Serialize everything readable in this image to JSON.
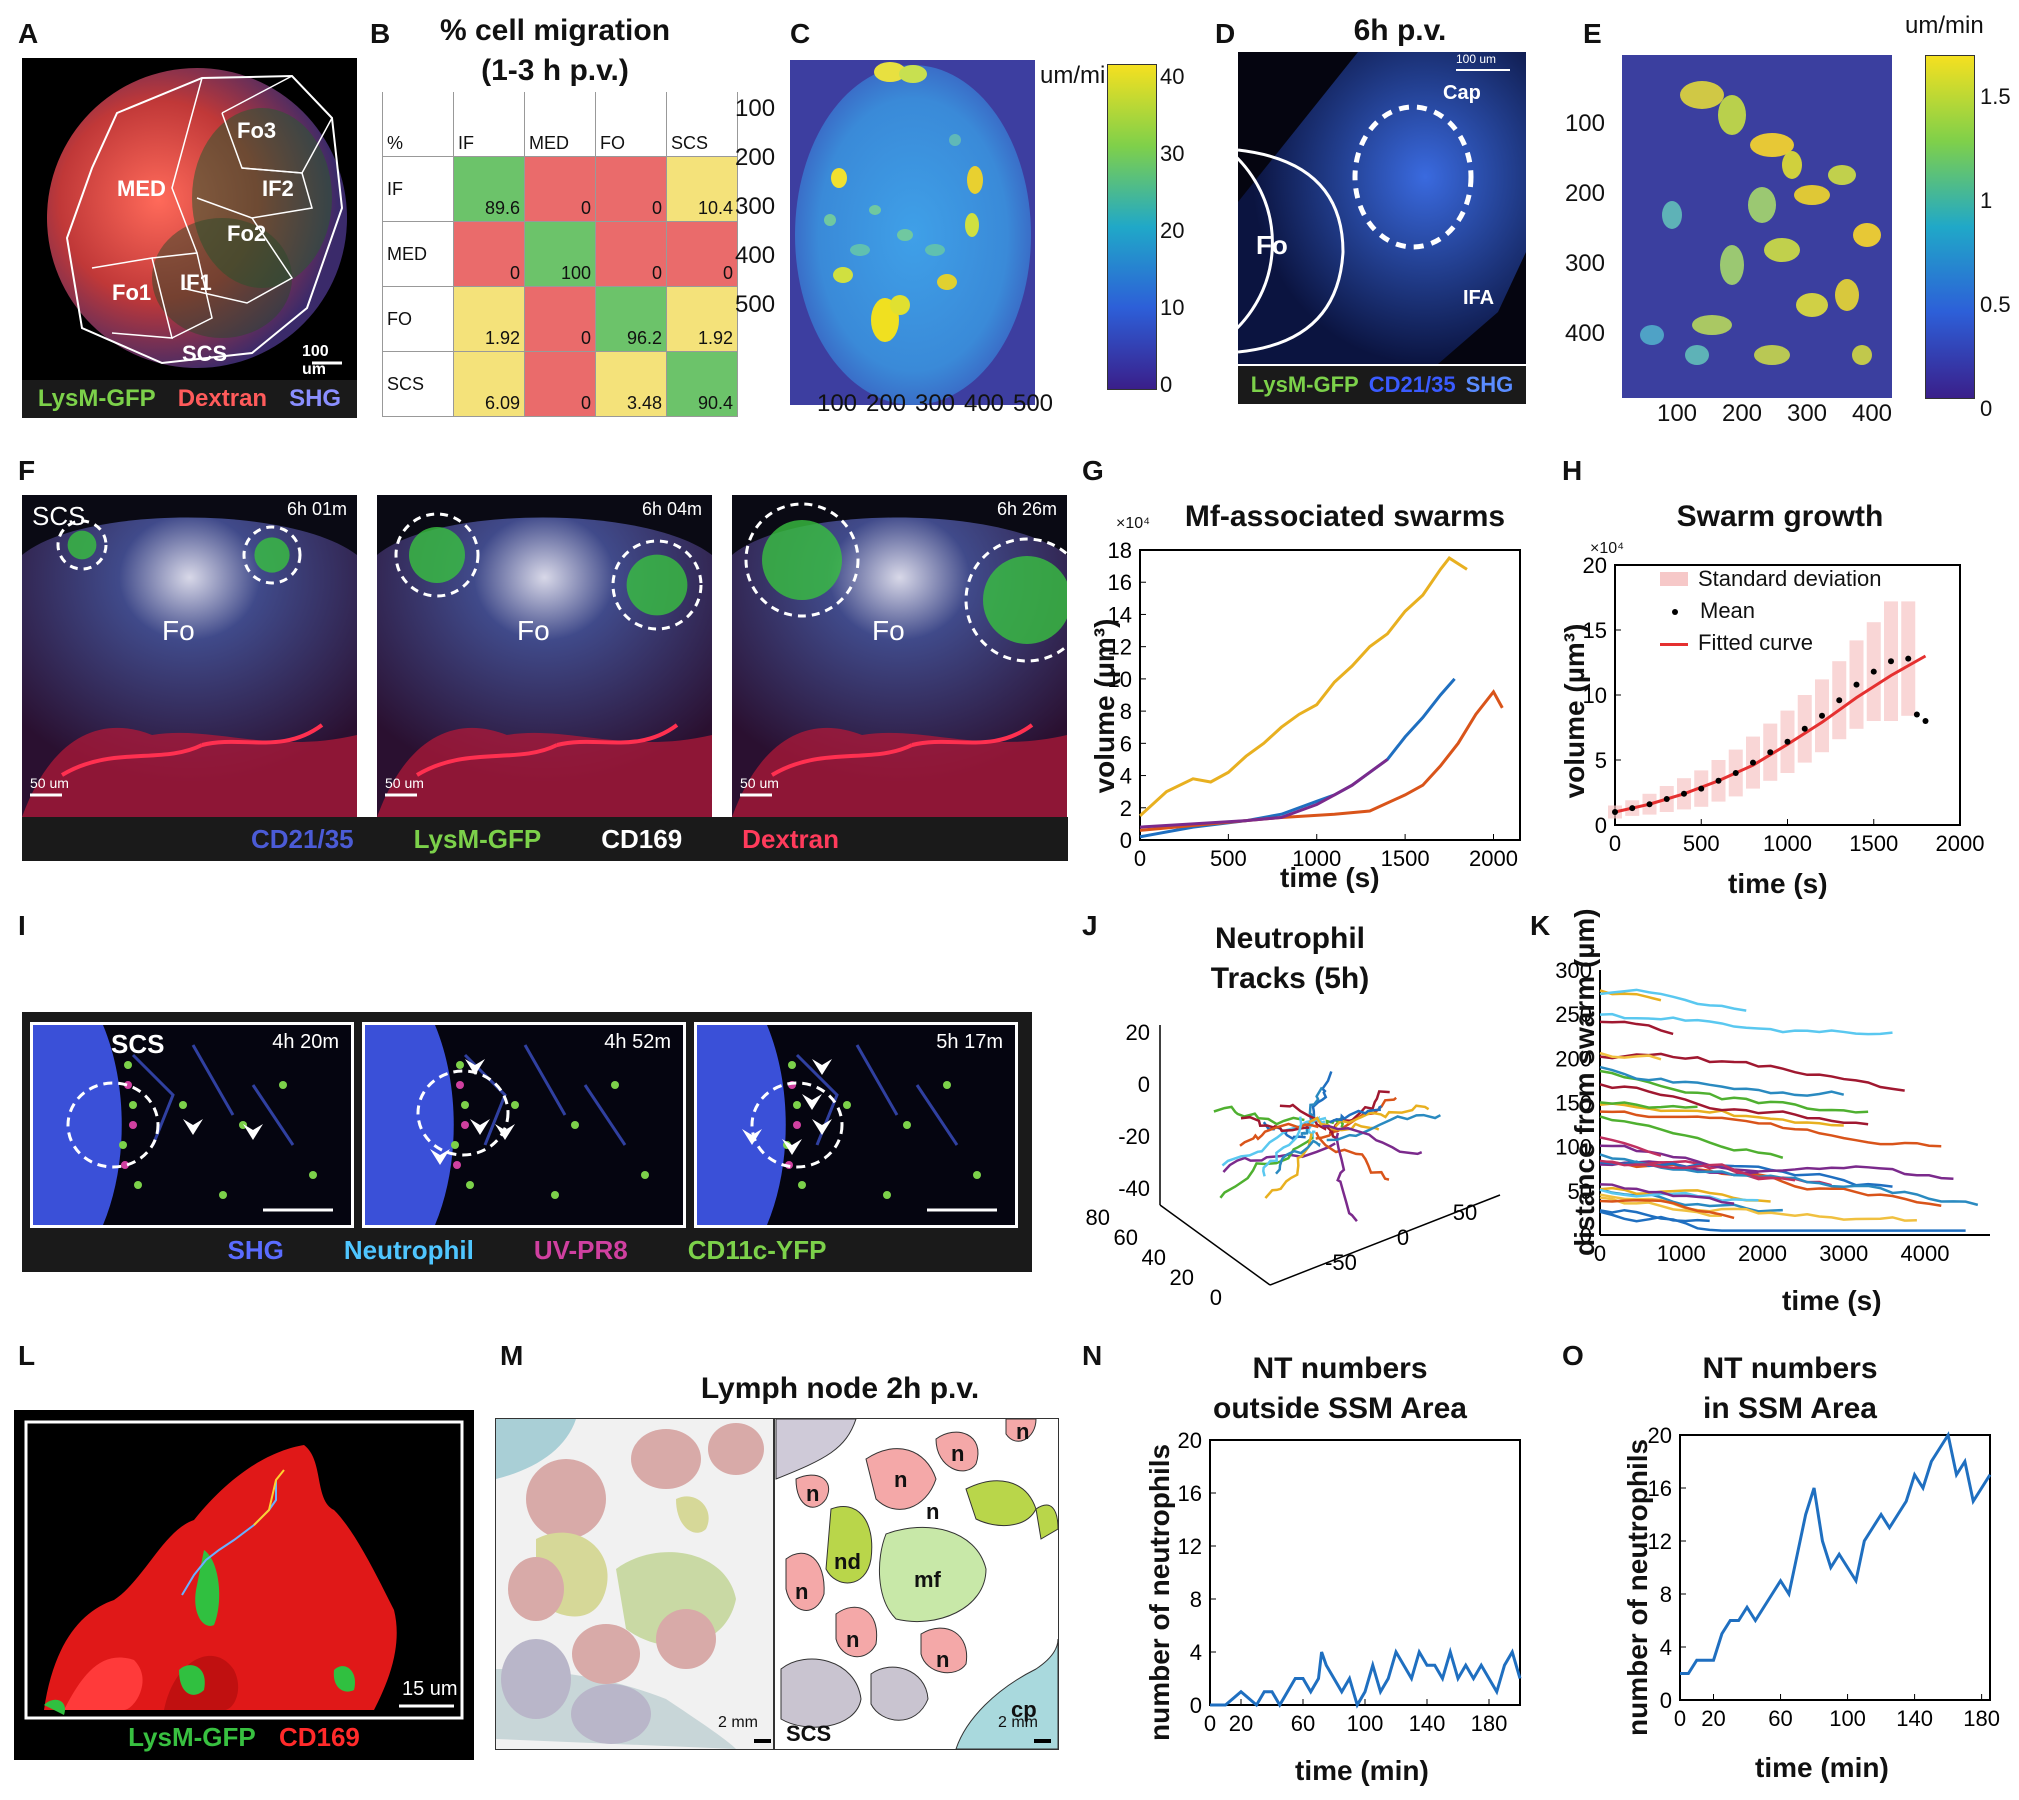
{
  "panel_letters": [
    "A",
    "B",
    "C",
    "D",
    "E",
    "F",
    "G",
    "H",
    "I",
    "J",
    "K",
    "L",
    "M",
    "N",
    "O"
  ],
  "panelA": {
    "regions": [
      "MED",
      "Fo3",
      "IF2",
      "Fo2",
      "Fo1",
      "IF1",
      "SCS"
    ],
    "scale": "100 um",
    "legend": [
      "LysM-GFP",
      "Dextran",
      "SHG"
    ],
    "legend_colors": [
      "#7cd14a",
      "#ff5b5b",
      "#8a8fff"
    ]
  },
  "panelB": {
    "title1": "% cell migration",
    "title2": "(1-3 h p.v.)",
    "corner": "%",
    "cols": [
      "IF",
      "MED",
      "FO",
      "SCS"
    ],
    "rows": [
      "IF",
      "MED",
      "FO",
      "SCS"
    ],
    "values": [
      [
        "89.6",
        "0",
        "0",
        "10.4"
      ],
      [
        "0",
        "100",
        "0",
        "0"
      ],
      [
        "1.92",
        "0",
        "96.2",
        "1.92"
      ],
      [
        "6.09",
        "0",
        "3.48",
        "90.4"
      ]
    ],
    "colors": [
      [
        "#6cc36a",
        "#ea6b6b",
        "#ea6b6b",
        "#f4e27a"
      ],
      [
        "#ea6b6b",
        "#6cc36a",
        "#ea6b6b",
        "#ea6b6b"
      ],
      [
        "#f4e27a",
        "#ea6b6b",
        "#6cc36a",
        "#f4e27a"
      ],
      [
        "#f4e27a",
        "#ea6b6b",
        "#f4e27a",
        "#6cc36a"
      ]
    ]
  },
  "panelC": {
    "unit": "um/min",
    "yticks": [
      "100",
      "200",
      "300",
      "400",
      "500"
    ],
    "xticks": [
      "100",
      "200",
      "300",
      "400",
      "500"
    ],
    "cbar_ticks": [
      "40",
      "30",
      "20",
      "10",
      "0"
    ]
  },
  "panelD": {
    "title": "6h p.v.",
    "scale": "100 um",
    "labels": [
      "Cap",
      "Fo",
      "IFA"
    ],
    "legend": [
      "LysM-GFP",
      "CD21/35",
      "SHG"
    ],
    "legend_colors": [
      "#7cd14a",
      "#3a5bff",
      "#5a8cff"
    ]
  },
  "panelE": {
    "unit": "um/min",
    "yticks": [
      "100",
      "200",
      "300",
      "400"
    ],
    "xticks": [
      "100",
      "200",
      "300",
      "400"
    ],
    "cbar_ticks": [
      "1.5",
      "1",
      "0.5",
      "0"
    ]
  },
  "panelF": {
    "frames": [
      {
        "time": "6h 01m",
        "region": "Fo",
        "extra": "SCS",
        "scale": "50 um"
      },
      {
        "time": "6h 04m",
        "region": "Fo",
        "extra": "",
        "scale": "50 um"
      },
      {
        "time": "6h 26m",
        "region": "Fo",
        "extra": "",
        "scale": "50 um"
      }
    ],
    "legend": [
      "CD21/35",
      "LysM-GFP",
      "CD169",
      "Dextran"
    ],
    "legend_colors": [
      "#4b5bd6",
      "#7cd14a",
      "#ffffff",
      "#ff3b5b"
    ]
  },
  "panelG": {
    "title": "Mf-associated swarms",
    "exp": "×10⁴",
    "xlabel": "time (s)",
    "ylabel": "volume (µm³)"
  },
  "panelH": {
    "title": "Swarm growth",
    "exp": "×10⁴",
    "xlabel": "time (s)",
    "ylabel": "volume (µm³)",
    "legend": [
      "Standard deviation",
      "Mean",
      "Fitted curve"
    ]
  },
  "panelI": {
    "frames": [
      {
        "time": "4h 20m",
        "extra": "SCS"
      },
      {
        "time": "4h 52m",
        "extra": ""
      },
      {
        "time": "5h 17m",
        "extra": ""
      }
    ],
    "legend": [
      "SHG",
      "Neutrophil",
      "UV-PR8",
      "CD11c-YFP"
    ],
    "legend_colors": [
      "#5a6cff",
      "#4fc6ff",
      "#d040a0",
      "#7cd14a"
    ]
  },
  "panelJ": {
    "title1": "Neutrophil",
    "title2": "Tracks (5h)",
    "zticks": [
      "20",
      "0",
      "-20",
      "-40"
    ],
    "yticks": [
      "80",
      "60",
      "40",
      "20",
      "0"
    ],
    "xticks": [
      "50",
      "0",
      "-50"
    ]
  },
  "panelK": {
    "xlabel": "time (s)",
    "ylabel": "distance from swarm (µm)"
  },
  "panelL": {
    "scale": "15 um",
    "legend": [
      "LysM-GFP",
      "CD169"
    ],
    "legend_colors": [
      "#38c040",
      "#ff2a2a"
    ]
  },
  "panelM": {
    "title": "Lymph node  2h p.v.",
    "labels": [
      "n",
      "n",
      "n",
      "nd",
      "mf",
      "n",
      "n",
      "n",
      "cp",
      "n",
      "n"
    ],
    "scs": "SCS",
    "scale": "2 mm"
  },
  "panelN": {
    "title1": "NT numbers",
    "title2": "outside SSM Area",
    "xlabel": "time (min)",
    "ylabel": "number of neutrophils"
  },
  "panelO": {
    "title1": "NT numbers",
    "title2": "in SSM Area",
    "xlabel": "time (min)",
    "ylabel": "number of neutrophils"
  },
  "chart_data": [
    {
      "id": "G",
      "type": "line",
      "title": "Mf-associated swarms",
      "xlabel": "time (s)",
      "ylabel": "volume (µm³) ×10⁴",
      "xlim": [
        0,
        2150
      ],
      "ylim": [
        0,
        18
      ],
      "xticks": [
        0,
        500,
        1000,
        1500,
        2000
      ],
      "yticks": [
        0,
        2,
        4,
        6,
        8,
        10,
        12,
        14,
        16,
        18
      ],
      "series": [
        {
          "name": "yellow",
          "color": "#e8b020",
          "x": [
            0,
            150,
            300,
            400,
            500,
            600,
            700,
            800,
            900,
            1000,
            1100,
            1200,
            1300,
            1400,
            1500,
            1600,
            1700,
            1750,
            1850
          ],
          "y": [
            1.5,
            3.0,
            3.8,
            3.6,
            4.2,
            5.2,
            6.0,
            7.0,
            7.8,
            8.4,
            9.8,
            10.8,
            12.0,
            12.8,
            14.2,
            15.2,
            16.8,
            17.5,
            16.8
          ]
        },
        {
          "name": "blue",
          "color": "#1f6fc0",
          "x": [
            0,
            300,
            600,
            800,
            1000,
            1100,
            1200,
            1300,
            1400,
            1500,
            1600,
            1700,
            1780
          ],
          "y": [
            0.2,
            0.8,
            1.2,
            1.6,
            2.4,
            2.8,
            3.4,
            4.2,
            5.0,
            6.4,
            7.6,
            9.0,
            10.0
          ]
        },
        {
          "name": "orange",
          "color": "#d9541a",
          "x": [
            0,
            400,
            800,
            1100,
            1300,
            1500,
            1600,
            1700,
            1800,
            1900,
            2000,
            2050
          ],
          "y": [
            0.6,
            1.0,
            1.4,
            1.6,
            1.8,
            2.8,
            3.4,
            4.6,
            6.0,
            7.8,
            9.2,
            8.2
          ]
        },
        {
          "name": "purple",
          "color": "#7b2a8c",
          "x": [
            0,
            300,
            600,
            800,
            1000,
            1100,
            1200,
            1300,
            1400
          ],
          "y": [
            0.8,
            1.0,
            1.2,
            1.4,
            2.2,
            2.8,
            3.4,
            4.2,
            5.0
          ]
        }
      ]
    },
    {
      "id": "H",
      "type": "scatter",
      "title": "Swarm growth",
      "xlabel": "time (s)",
      "ylabel": "volume (µm³) ×10⁴",
      "xlim": [
        0,
        2000
      ],
      "ylim": [
        0,
        20
      ],
      "xticks": [
        0,
        500,
        1000,
        1500,
        2000
      ],
      "yticks": [
        0,
        5,
        10,
        15,
        20
      ],
      "mean": {
        "x": [
          0,
          100,
          200,
          300,
          400,
          500,
          600,
          700,
          800,
          900,
          1000,
          1100,
          1200,
          1300,
          1400,
          1500,
          1600,
          1700,
          1750,
          1800
        ],
        "y": [
          1.0,
          1.3,
          1.6,
          2.0,
          2.4,
          2.8,
          3.4,
          4.0,
          4.8,
          5.6,
          6.4,
          7.4,
          8.4,
          9.6,
          10.8,
          11.8,
          12.6,
          12.8,
          8.5,
          8.0
        ]
      },
      "sd": [
        0.5,
        0.6,
        0.8,
        1.0,
        1.2,
        1.4,
        1.6,
        1.8,
        2.0,
        2.2,
        2.4,
        2.6,
        2.8,
        3.0,
        3.4,
        3.8,
        4.6,
        4.4,
        0,
        0
      ],
      "fit": {
        "x": [
          0,
          200,
          400,
          600,
          800,
          1000,
          1200,
          1400,
          1600,
          1800
        ],
        "y": [
          1.0,
          1.6,
          2.4,
          3.4,
          4.6,
          6.2,
          7.9,
          9.8,
          11.5,
          13.0
        ]
      }
    },
    {
      "id": "J",
      "type": "line3d",
      "title": "Neutrophil Tracks (5h)",
      "xlim": [
        -80,
        60
      ],
      "ylim": [
        0,
        80
      ],
      "zlim": [
        -40,
        20
      ],
      "n_tracks": 24
    },
    {
      "id": "K",
      "type": "line",
      "title": "",
      "xlabel": "time (s)",
      "ylabel": "distance from swarm (µm)",
      "xlim": [
        0,
        4800
      ],
      "ylim": [
        0,
        300
      ],
      "xticks": [
        0,
        1000,
        2000,
        3000,
        4000
      ],
      "yticks": [
        0,
        50,
        100,
        150,
        200,
        250,
        300
      ],
      "n_tracks": 30
    },
    {
      "id": "N",
      "type": "line",
      "title": "NT numbers outside SSM Area",
      "xlabel": "time (min)",
      "ylabel": "number of neutrophils",
      "xlim": [
        0,
        200
      ],
      "ylim": [
        0,
        20
      ],
      "xticks": [
        0,
        20,
        60,
        100,
        140,
        180
      ],
      "yticks": [
        0,
        4,
        8,
        12,
        16,
        20
      ],
      "series": [
        {
          "name": "count",
          "color": "#1f6fc0",
          "x": [
            0,
            10,
            20,
            30,
            35,
            40,
            45,
            50,
            55,
            60,
            65,
            70,
            72,
            75,
            80,
            85,
            90,
            95,
            100,
            105,
            110,
            115,
            120,
            125,
            130,
            135,
            140,
            145,
            150,
            155,
            160,
            165,
            170,
            175,
            180,
            185,
            190,
            195,
            200
          ],
          "y": [
            0,
            0,
            1,
            0,
            1,
            1,
            0,
            1,
            2,
            2,
            1,
            2,
            4,
            3,
            2,
            1,
            2,
            0,
            1,
            3,
            1,
            2,
            4,
            3,
            2,
            4,
            3,
            3,
            2,
            4,
            2,
            3,
            2,
            3,
            2,
            1,
            3,
            4,
            2
          ]
        }
      ]
    },
    {
      "id": "O",
      "type": "line",
      "title": "NT numbers in SSM Area",
      "xlabel": "time (min)",
      "ylabel": "number of neutrophils",
      "xlim": [
        0,
        185
      ],
      "ylim": [
        0,
        20
      ],
      "xticks": [
        0,
        20,
        60,
        100,
        140,
        180
      ],
      "yticks": [
        0,
        4,
        8,
        12,
        16,
        20
      ],
      "series": [
        {
          "name": "count",
          "color": "#1f6fc0",
          "x": [
            0,
            5,
            10,
            15,
            20,
            25,
            30,
            35,
            40,
            45,
            50,
            55,
            60,
            65,
            70,
            75,
            80,
            85,
            90,
            95,
            100,
            105,
            110,
            115,
            120,
            125,
            130,
            135,
            140,
            145,
            150,
            155,
            160,
            165,
            170,
            175,
            180,
            185
          ],
          "y": [
            2,
            2,
            3,
            3,
            3,
            5,
            6,
            6,
            7,
            6,
            7,
            8,
            9,
            8,
            11,
            14,
            16,
            12,
            10,
            11,
            10,
            9,
            12,
            13,
            14,
            13,
            14,
            15,
            17,
            16,
            18,
            19,
            20,
            17,
            18,
            15,
            16,
            17
          ]
        }
      ]
    }
  ]
}
